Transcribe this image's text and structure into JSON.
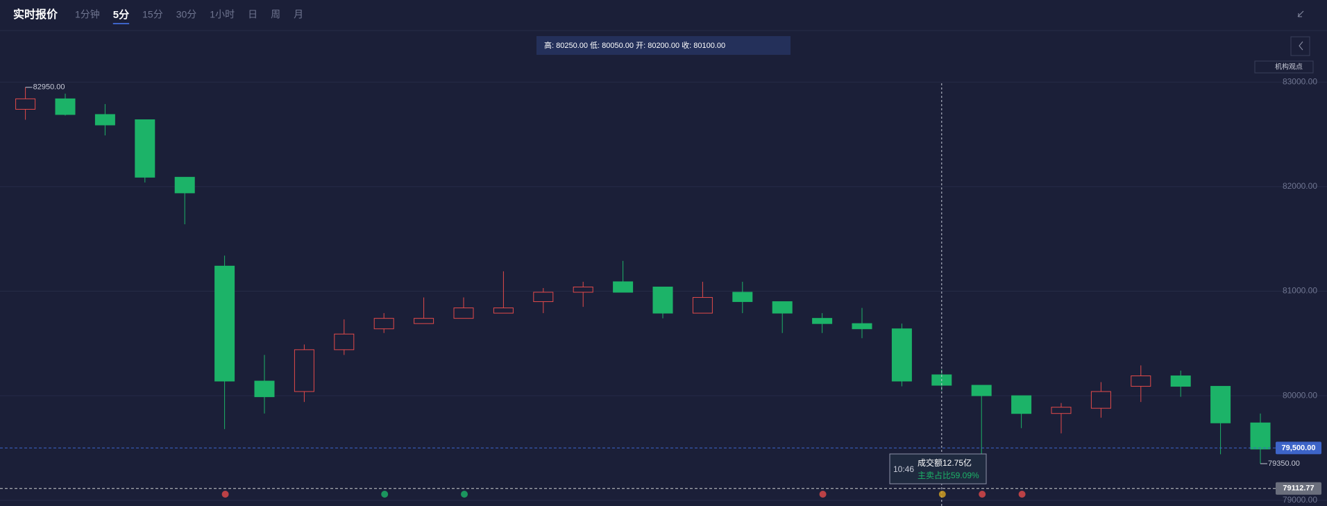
{
  "header": {
    "title": "实时报价",
    "tabs": [
      "1分钟",
      "5分",
      "15分",
      "30分",
      "1小时",
      "日",
      "周",
      "月"
    ],
    "active_tab": "5分"
  },
  "info_bar": "高: 80250.00 低: 80050.00 开: 80200.00 收: 80100.00",
  "side_button": "机构观点",
  "tooltip": {
    "time": "10:46",
    "turnover": "成交额12.75亿",
    "sell_ratio": "主卖占比59.09%"
  },
  "chart_data": {
    "type": "candlestick",
    "open": [
      82740,
      82840,
      82690,
      82640,
      82090,
      81240,
      80140,
      80040,
      80440,
      80640,
      80690,
      80740,
      80790,
      80900,
      80990,
      81090,
      81040,
      80790,
      80990,
      80900,
      80740,
      80690,
      80640,
      80200,
      80100,
      80000,
      79830,
      79880,
      80090,
      80190,
      80090,
      79740
    ],
    "high": [
      82950,
      82890,
      82790,
      82640,
      82090,
      81340,
      80390,
      80490,
      80730,
      80790,
      80940,
      80940,
      81190,
      81030,
      81090,
      81290,
      81040,
      81090,
      81090,
      80900,
      80790,
      80840,
      80690,
      80250,
      80100,
      80000,
      79930,
      80130,
      80290,
      80240,
      80090,
      79830
    ],
    "low": [
      82640,
      82680,
      82490,
      82040,
      81640,
      79680,
      79830,
      79940,
      80390,
      80600,
      80690,
      80740,
      80790,
      80790,
      80850,
      80990,
      80740,
      80790,
      80790,
      80600,
      80600,
      80550,
      80090,
      80050,
      79420,
      79690,
      79640,
      79790,
      79940,
      79990,
      79440,
      79350
    ],
    "close": [
      82840,
      82690,
      82590,
      82090,
      81940,
      80140,
      79990,
      80440,
      80590,
      80740,
      80740,
      80840,
      80840,
      80990,
      81040,
      80990,
      80790,
      80940,
      80900,
      80790,
      80690,
      80640,
      80140,
      80100,
      80000,
      79830,
      79890,
      80040,
      80190,
      80090,
      79740,
      79490
    ],
    "up_color": "#e34a4a",
    "down_color": "#1cb368",
    "ylim": [
      78945,
      83055
    ],
    "yticks": [
      {
        "value": 79000,
        "label": "79000.00"
      },
      {
        "value": 80000,
        "label": "80000.00"
      },
      {
        "value": 81000,
        "label": "81000.00"
      },
      {
        "value": 82000,
        "label": "82000.00"
      },
      {
        "value": 83000,
        "label": "83000.00"
      }
    ],
    "grid": true,
    "max_label": {
      "value": 82950,
      "label": "82950.00"
    },
    "min_label": {
      "value": 79350,
      "label": "79350.00"
    },
    "price_lines": [
      {
        "value": 79500,
        "label": "79,500.00",
        "color": "#3d64c8"
      },
      {
        "value": 79112.77,
        "label": "79112.77",
        "color": "#6a6e7c"
      }
    ]
  }
}
